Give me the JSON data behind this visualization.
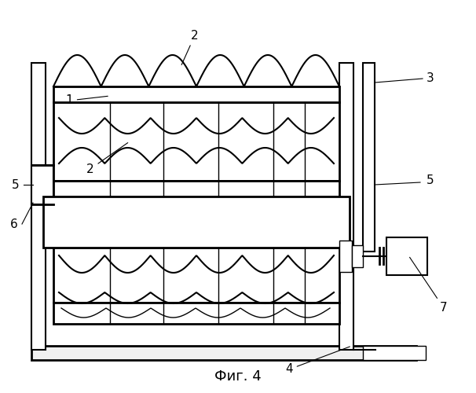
{
  "title": "Фиг. 4",
  "background_color": "#ffffff",
  "line_color": "#000000",
  "label_color": "#000000",
  "fig_width": 6.06,
  "fig_height": 5.0
}
